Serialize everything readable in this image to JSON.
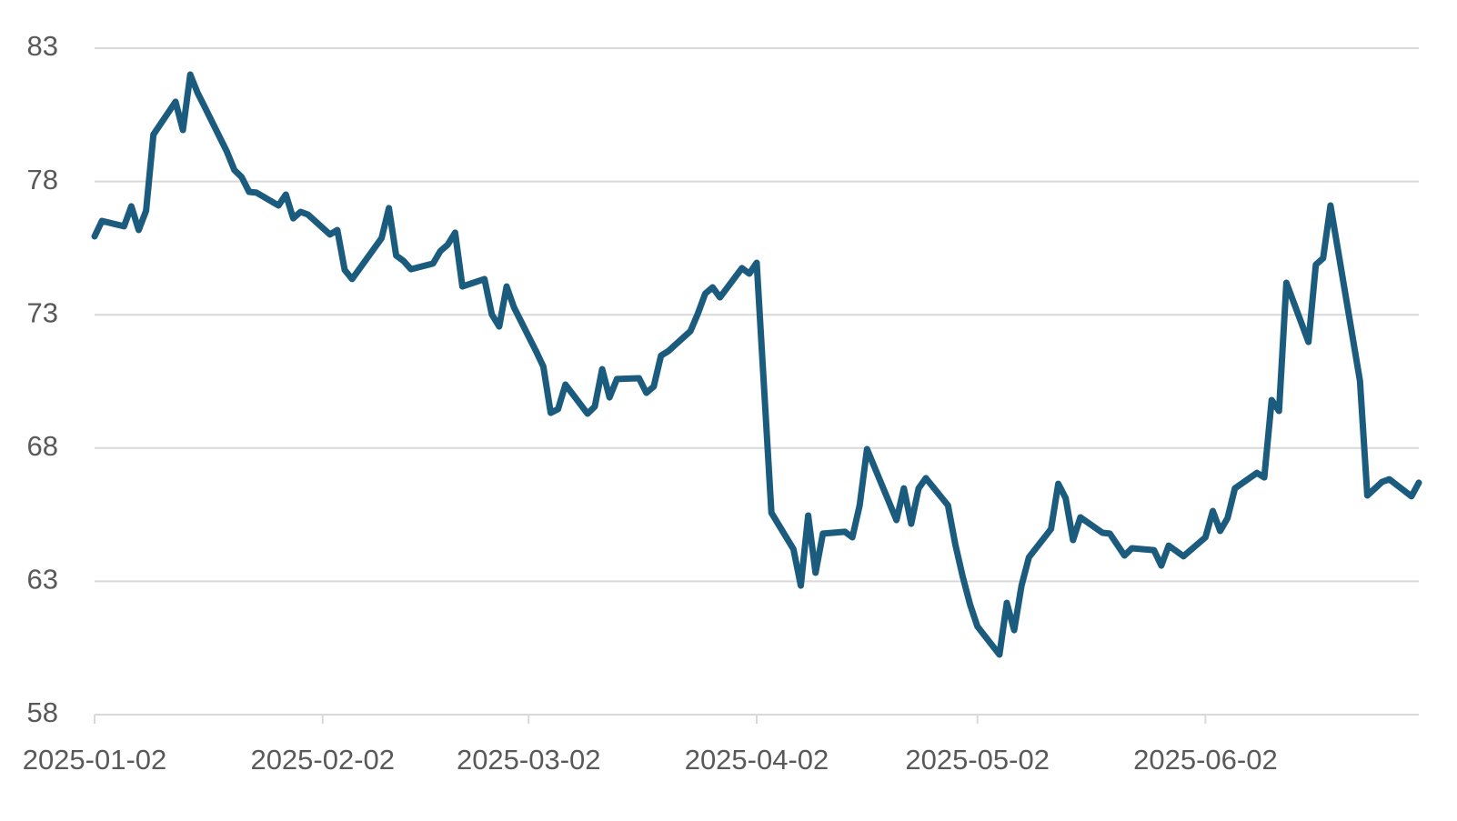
{
  "chart_data": {
    "type": "line",
    "color": "#1b5c7e",
    "grid": true,
    "x": [
      "2025-01-02",
      "2025-01-03",
      "2025-01-06",
      "2025-01-07",
      "2025-01-08",
      "2025-01-09",
      "2025-01-10",
      "2025-01-13",
      "2025-01-14",
      "2025-01-15",
      "2025-01-16",
      "2025-01-17",
      "2025-01-20",
      "2025-01-21",
      "2025-01-22",
      "2025-01-23",
      "2025-01-24",
      "2025-01-27",
      "2025-01-28",
      "2025-01-29",
      "2025-01-30",
      "2025-01-31",
      "2025-02-03",
      "2025-02-04",
      "2025-02-05",
      "2025-02-06",
      "2025-02-10",
      "2025-02-11",
      "2025-02-12",
      "2025-02-13",
      "2025-02-14",
      "2025-02-17",
      "2025-02-18",
      "2025-02-19",
      "2025-02-20",
      "2025-02-21",
      "2025-02-24",
      "2025-02-25",
      "2025-02-26",
      "2025-02-27",
      "2025-02-28",
      "2025-03-03",
      "2025-03-04",
      "2025-03-05",
      "2025-03-06",
      "2025-03-07",
      "2025-03-10",
      "2025-03-11",
      "2025-03-12",
      "2025-03-13",
      "2025-03-14",
      "2025-03-17",
      "2025-03-18",
      "2025-03-19",
      "2025-03-20",
      "2025-03-21",
      "2025-03-24",
      "2025-03-25",
      "2025-03-26",
      "2025-03-27",
      "2025-03-28",
      "2025-03-31",
      "2025-04-01",
      "2025-04-02",
      "2025-04-04",
      "2025-04-07",
      "2025-04-08",
      "2025-04-09",
      "2025-04-10",
      "2025-04-11",
      "2025-04-14",
      "2025-04-15",
      "2025-04-16",
      "2025-04-17",
      "2025-04-21",
      "2025-04-22",
      "2025-04-23",
      "2025-04-24",
      "2025-04-25",
      "2025-04-28",
      "2025-04-29",
      "2025-04-30",
      "2025-05-01",
      "2025-05-02",
      "2025-05-05",
      "2025-05-06",
      "2025-05-07",
      "2025-05-08",
      "2025-05-09",
      "2025-05-12",
      "2025-05-13",
      "2025-05-14",
      "2025-05-15",
      "2025-05-16",
      "2025-05-19",
      "2025-05-20",
      "2025-05-22",
      "2025-05-23",
      "2025-05-26",
      "2025-05-27",
      "2025-05-28",
      "2025-05-30",
      "2025-06-02",
      "2025-06-03",
      "2025-06-04",
      "2025-06-05",
      "2025-06-06",
      "2025-06-09",
      "2025-06-10",
      "2025-06-11",
      "2025-06-12",
      "2025-06-13",
      "2025-06-16",
      "2025-06-17",
      "2025-06-18",
      "2025-06-19",
      "2025-06-23",
      "2025-06-24",
      "2025-06-26",
      "2025-06-27",
      "2025-06-30",
      "2025-07-01"
    ],
    "values": [
      75.94,
      76.52,
      76.32,
      77.07,
      76.18,
      76.9,
      79.76,
      80.99,
      79.93,
      82.01,
      81.33,
      80.78,
      79.11,
      78.43,
      78.16,
      77.61,
      77.58,
      77.1,
      77.51,
      76.62,
      76.86,
      76.76,
      76.01,
      76.18,
      74.68,
      74.34,
      75.87,
      77.0,
      75.22,
      75.02,
      74.71,
      74.92,
      75.39,
      75.63,
      76.08,
      74.06,
      74.34,
      73.01,
      72.56,
      74.06,
      73.28,
      71.64,
      71.06,
      69.32,
      69.46,
      70.38,
      69.29,
      69.56,
      70.96,
      69.9,
      70.59,
      70.62,
      70.07,
      70.31,
      71.47,
      71.64,
      72.39,
      73.04,
      73.79,
      74.03,
      73.65,
      74.75,
      74.54,
      74.95,
      65.57,
      64.21,
      62.84,
      65.47,
      63.32,
      64.79,
      64.86,
      64.65,
      65.85,
      67.96,
      65.3,
      66.49,
      65.16,
      66.49,
      66.87,
      65.85,
      64.38,
      63.18,
      62.13,
      61.31,
      60.25,
      62.19,
      61.17,
      62.84,
      63.9,
      64.96,
      66.66,
      66.12,
      64.55,
      65.4,
      64.82,
      64.79,
      63.97,
      64.24,
      64.17,
      63.59,
      64.34,
      63.94,
      64.65,
      65.64,
      64.89,
      65.37,
      66.49,
      67.07,
      66.9,
      69.8,
      69.39,
      74.2,
      71.98,
      74.88,
      75.12,
      77.1,
      70.52,
      66.22,
      66.73,
      66.83,
      66.19,
      66.7
    ],
    "xlim": [
      "2025-01-02",
      "2025-07-01"
    ],
    "xticks": [
      "2025-01-02",
      "2025-02-02",
      "2025-03-02",
      "2025-04-02",
      "2025-05-02",
      "2025-06-02"
    ],
    "ylim": [
      58,
      83
    ],
    "yticks": [
      58,
      63,
      68,
      73,
      78,
      83
    ]
  }
}
